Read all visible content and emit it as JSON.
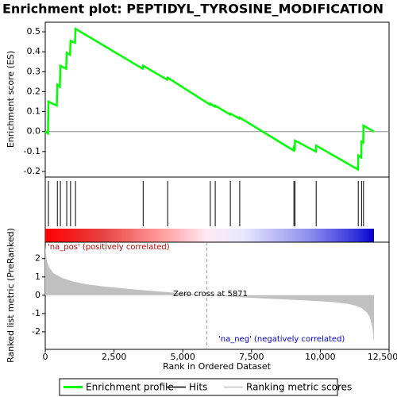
{
  "chart_data": [
    {
      "type": "line",
      "title": "Enrichment plot: PEPTIDYL_TYROSINE_MODIFICATION",
      "ylabel": "Enrichment score (ES)",
      "xlim": [
        0,
        12500
      ],
      "ylim": [
        -0.228,
        0.548
      ],
      "yticks": [
        -0.2,
        -0.1,
        {
          "value": 0,
          "label": "0.0"
        },
        0.1,
        0.2,
        0.3,
        0.4,
        0.5
      ],
      "series": [
        {
          "name": "Enrichment profile",
          "color": "#00ff00",
          "x": [
            0,
            100,
            115,
            420,
            440,
            530,
            550,
            760,
            780,
            900,
            920,
            1080,
            1100,
            3540,
            3560,
            4430,
            4450,
            5990,
            6000,
            6170,
            6180,
            6720,
            6730,
            7060,
            7070,
            9030,
            9040,
            9070,
            9080,
            9840,
            9850,
            11370,
            11380,
            11490,
            11500,
            11560,
            11570,
            11950
          ],
          "values": [
            0,
            -0.01,
            0.15,
            0.13,
            0.235,
            0.225,
            0.33,
            0.315,
            0.395,
            0.385,
            0.455,
            0.445,
            0.515,
            0.315,
            0.33,
            0.26,
            0.27,
            0.135,
            0.14,
            0.125,
            0.13,
            0.085,
            0.09,
            0.065,
            0.07,
            -0.095,
            -0.08,
            -0.085,
            -0.045,
            -0.1,
            -0.07,
            -0.19,
            -0.12,
            -0.13,
            -0.05,
            -0.055,
            0.03,
            0
          ]
        }
      ]
    },
    {
      "type": "rug",
      "xlim": [
        0,
        12500
      ],
      "series": [
        {
          "name": "Hits",
          "color": "#000000",
          "x": [
            115,
            440,
            550,
            780,
            920,
            1100,
            3560,
            4450,
            6000,
            6180,
            6730,
            7070,
            9040,
            9080,
            9850,
            11380,
            11500,
            11570
          ]
        }
      ]
    },
    {
      "type": "area",
      "ylabel": "Ranked list metric (PreRanked)",
      "xlabel": "Rank in Ordered Dataset",
      "xlim": [
        0,
        12500
      ],
      "xticks": [
        0,
        {
          "value": 2500,
          "label": "2,500"
        },
        {
          "value": 5000,
          "label": "5,000"
        },
        {
          "value": 7500,
          "label": "7,500"
        },
        {
          "value": 10000,
          "label": "10,000"
        },
        {
          "value": 12500,
          "label": "12,500"
        }
      ],
      "ylim": [
        -2.96,
        2.9
      ],
      "yticks": [
        2,
        1,
        0,
        -1,
        -2
      ],
      "zero_cross": 5871,
      "annotations": [
        "'na_pos' (positively correlated)",
        "Zero cross at 5871",
        "'na_neg' (negatively correlated)"
      ],
      "series": [
        {
          "name": "Ranking metric scores",
          "color": "#c0c0c0",
          "x": [
            0,
            50,
            150,
            300,
            600,
            1000,
            1500,
            2000,
            3000,
            4000,
            5000,
            5871,
            7000,
            8000,
            9000,
            10000,
            10500,
            11000,
            11300,
            11500,
            11700,
            11800,
            11900,
            11950
          ],
          "values": [
            2.7,
            1.9,
            1.5,
            1.2,
            0.95,
            0.75,
            0.6,
            0.5,
            0.35,
            0.22,
            0.1,
            0,
            -0.1,
            -0.18,
            -0.25,
            -0.33,
            -0.38,
            -0.47,
            -0.58,
            -0.7,
            -0.95,
            -1.2,
            -1.8,
            -2.6
          ]
        }
      ]
    }
  ]
}
